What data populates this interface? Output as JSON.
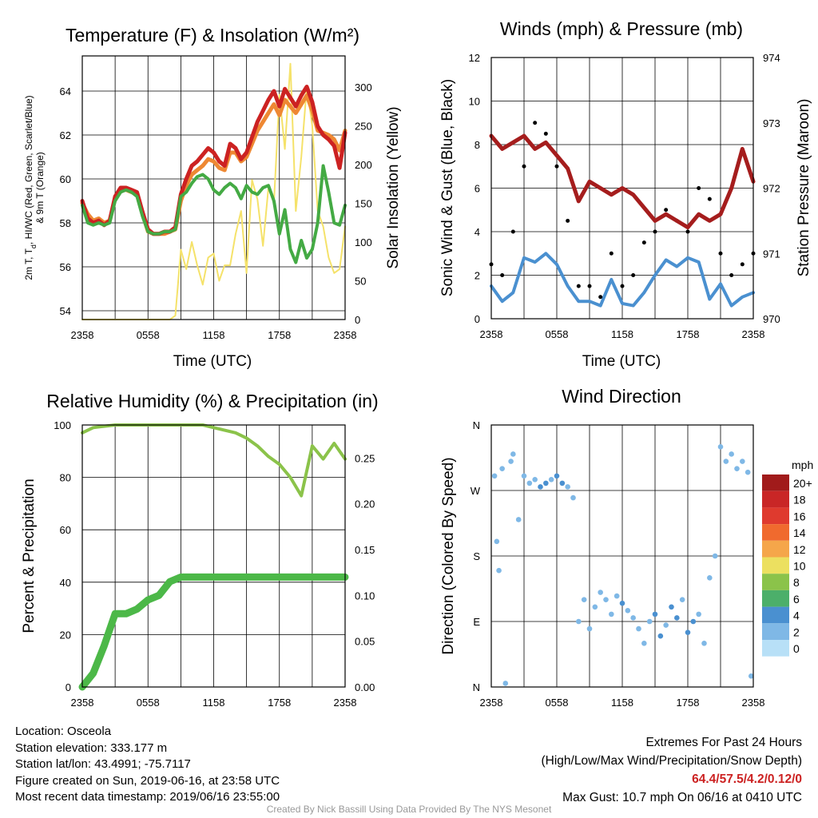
{
  "colors": {
    "red": "#cc2222",
    "orange": "#ee8833",
    "green": "#44aa44",
    "yellow": "#f5e26a",
    "lightgreen": "#8bc34a",
    "blue": "#4a90d0",
    "maroon": "#a51d1d",
    "black": "#000000",
    "precip": "#4cb848",
    "credit": "#999999"
  },
  "x_ticks": [
    "2358",
    "0558",
    "1158",
    "1758",
    "2358"
  ],
  "info": {
    "location": "Location: Osceola",
    "elevation": "Station elevation: 333.177 m",
    "latlon": "Station lat/lon: 43.4991; -75.7117",
    "created": "Figure created on Sun, 2019-06-16, at 23:58 UTC",
    "recent": "Most recent data timestamp: 2019/06/16 23:55:00"
  },
  "extremes": {
    "title": "Extremes For Past 24 Hours",
    "subtitle": "(High/Low/Max Wind/Precipitation/Snow Depth)",
    "values": "64.4/57.5/4.2/0.12/0",
    "max_gust": "Max Gust: 10.7 mph On 06/16 at 0410 UTC"
  },
  "credit": "Created By Nick Bassill Using Data Provided By The NYS Mesonet",
  "chart_data": [
    {
      "type": "line",
      "title": "Temperature (F) & Insolation (W/m²)",
      "xlabel": "Time (UTC)",
      "ylabel": "2m T, Td, HI/WC (Red, Green, Scarlet/Blue) & 9m T (Orange)",
      "ylabel_lines": [
        "2m T, T",
        "d",
        ", HI/WC (Red, Green, Scarlet/Blue)",
        "& 9m T (Orange)"
      ],
      "ylabel_right": "Solar Insolation (Yellow)",
      "ylim": [
        53.6,
        65.6
      ],
      "y_ticks": [
        54,
        56,
        58,
        60,
        62,
        64
      ],
      "ylim_right": [
        0,
        340
      ],
      "y_ticks_right": [
        0,
        50,
        100,
        150,
        200,
        250,
        300
      ],
      "x_hours": [
        0,
        0.5,
        1,
        1.5,
        2,
        2.5,
        3,
        3.5,
        4,
        4.5,
        5,
        5.5,
        6,
        6.5,
        7,
        7.5,
        8,
        8.5,
        9,
        9.5,
        10,
        10.5,
        11,
        11.5,
        12,
        12.5,
        13,
        13.5,
        14,
        14.5,
        15,
        15.5,
        16,
        16.5,
        17,
        17.5,
        18,
        18.5,
        19,
        19.5,
        20,
        20.5,
        21,
        21.5,
        22,
        22.5,
        23,
        23.5,
        24
      ],
      "series": [
        {
          "name": "2m T",
          "color": "red",
          "values": [
            59.0,
            58.2,
            58.0,
            58.1,
            57.9,
            58.1,
            59.2,
            59.6,
            59.6,
            59.5,
            59.4,
            58.5,
            57.7,
            57.5,
            57.5,
            57.6,
            57.6,
            57.8,
            59.3,
            60.0,
            60.6,
            60.8,
            61.1,
            61.4,
            61.2,
            60.8,
            60.6,
            61.6,
            61.4,
            60.9,
            61.2,
            61.9,
            62.6,
            63.1,
            63.6,
            64.0,
            63.3,
            64.1,
            63.7,
            63.3,
            63.8,
            64.2,
            63.5,
            62.4,
            62.0,
            61.8,
            61.5,
            60.5,
            62.1
          ]
        },
        {
          "name": "9m T",
          "color": "orange",
          "values": [
            58.9,
            58.4,
            58.1,
            58.2,
            58.0,
            58.1,
            59.1,
            59.5,
            59.5,
            59.4,
            59.3,
            58.4,
            57.6,
            57.5,
            57.5,
            57.5,
            57.6,
            57.7,
            59.0,
            59.7,
            60.2,
            60.4,
            60.6,
            60.9,
            60.8,
            60.5,
            60.4,
            61.2,
            61.2,
            60.8,
            61.0,
            61.6,
            62.2,
            62.6,
            63.0,
            63.4,
            62.9,
            63.6,
            63.3,
            63.0,
            63.4,
            63.8,
            63.1,
            62.2,
            62.1,
            62.0,
            61.8,
            61.3,
            62.2
          ]
        },
        {
          "name": "Td",
          "color": "green",
          "values": [
            58.8,
            58.0,
            57.9,
            58.0,
            57.9,
            58.0,
            59.0,
            59.4,
            59.5,
            59.4,
            59.2,
            58.3,
            57.6,
            57.5,
            57.5,
            57.6,
            57.6,
            57.7,
            59.2,
            59.4,
            59.8,
            60.1,
            60.2,
            60.0,
            59.5,
            59.3,
            59.6,
            59.8,
            59.6,
            59.1,
            59.7,
            59.4,
            59.3,
            59.6,
            59.7,
            59.0,
            57.5,
            58.6,
            56.8,
            56.2,
            57.2,
            56.4,
            56.8,
            58.0,
            60.6,
            59.4,
            58.0,
            57.9,
            58.8
          ]
        },
        {
          "name": "Solar Insolation",
          "color": "yellow",
          "axis": "right",
          "values": [
            0,
            0,
            0,
            0,
            0,
            0,
            0,
            0,
            0,
            0,
            0,
            0,
            0,
            0,
            0,
            0,
            0,
            5,
            90,
            65,
            100,
            70,
            45,
            80,
            85,
            50,
            70,
            70,
            110,
            140,
            60,
            180,
            155,
            95,
            170,
            150,
            290,
            220,
            330,
            140,
            210,
            300,
            250,
            140,
            120,
            80,
            60,
            65,
            120
          ]
        }
      ]
    },
    {
      "type": "line",
      "title": "Winds (mph) & Pressure (mb)",
      "xlabel": "Time (UTC)",
      "ylabel": "Sonic Wind & Gust (Blue, Black)",
      "ylabel_right": "Station Pressure (Maroon)",
      "ylim": [
        0,
        12
      ],
      "y_ticks": [
        0,
        2,
        4,
        6,
        8,
        10,
        12
      ],
      "ylim_right": [
        970,
        974
      ],
      "y_ticks_right": [
        970,
        971,
        972,
        973,
        974
      ],
      "x_hours": [
        0,
        1,
        2,
        3,
        4,
        5,
        6,
        7,
        8,
        9,
        10,
        11,
        12,
        13,
        14,
        15,
        16,
        17,
        18,
        19,
        20,
        21,
        22,
        23,
        24
      ],
      "series": [
        {
          "name": "Station Pressure",
          "color": "maroon",
          "axis": "right",
          "values": [
            972.8,
            972.6,
            972.7,
            972.8,
            972.6,
            972.7,
            972.5,
            972.3,
            971.8,
            972.1,
            972.0,
            971.9,
            972.0,
            971.9,
            971.7,
            971.5,
            971.6,
            971.5,
            971.4,
            971.6,
            971.5,
            971.6,
            972.0,
            972.6,
            972.1
          ]
        },
        {
          "name": "Sonic Wind",
          "color": "blue",
          "values": [
            1.5,
            0.8,
            1.2,
            2.8,
            2.6,
            3.0,
            2.5,
            1.5,
            0.8,
            0.8,
            0.6,
            1.8,
            0.7,
            0.6,
            1.2,
            2.0,
            2.7,
            2.4,
            2.8,
            2.6,
            0.9,
            1.6,
            0.6,
            1.0,
            1.2
          ]
        },
        {
          "name": "Gust",
          "color": "black",
          "values": [
            2.5,
            2.0,
            4.0,
            7.0,
            9.0,
            8.5,
            7.0,
            4.5,
            1.5,
            1.5,
            1.0,
            3.0,
            1.5,
            2.0,
            3.5,
            4.0,
            5.0,
            4.5,
            4.0,
            6.0,
            5.5,
            3.0,
            2.0,
            2.5,
            3.0
          ]
        }
      ]
    },
    {
      "type": "line",
      "title": "Relative Humidity (%) & Precipitation (in)",
      "ylabel": "Percent & Precipitation",
      "ylim": [
        0,
        100
      ],
      "y_ticks": [
        0,
        20,
        40,
        60,
        80,
        100
      ],
      "ylim_right": [
        0,
        0.286
      ],
      "y_ticks_right": [
        "0.00",
        "0.05",
        "0.10",
        "0.15",
        "0.20",
        "0.25"
      ],
      "x_hours": [
        0,
        1,
        2,
        3,
        4,
        5,
        6,
        7,
        8,
        9,
        10,
        11,
        12,
        13,
        14,
        15,
        16,
        17,
        18,
        19,
        20,
        21,
        22,
        23,
        24
      ],
      "series": [
        {
          "name": "Relative Humidity",
          "color": "lightgreen",
          "values": [
            97,
            99,
            99.5,
            100,
            100,
            100,
            100,
            100,
            100,
            100,
            100,
            100,
            99,
            98,
            97,
            95,
            92,
            88,
            85,
            80,
            73,
            92,
            87,
            93,
            87
          ]
        },
        {
          "name": "Precipitation",
          "color": "precip",
          "axis": "right",
          "values": [
            0.0,
            0.015,
            0.045,
            0.08,
            0.08,
            0.085,
            0.095,
            0.1,
            0.115,
            0.12,
            0.12,
            0.12,
            0.12,
            0.12,
            0.12,
            0.12,
            0.12,
            0.12,
            0.12,
            0.12,
            0.12,
            0.12,
            0.12,
            0.12,
            0.12
          ]
        }
      ]
    },
    {
      "type": "scatter",
      "title": "Wind Direction",
      "ylabel": "Direction (Colored By Speed)",
      "y_ticks": [
        "N",
        "E",
        "S",
        "W",
        "N"
      ],
      "ylim": [
        0,
        360
      ],
      "legend": {
        "title": "mph",
        "position": "right",
        "labels": [
          "20+",
          "18",
          "16",
          "14",
          "12",
          "10",
          "8",
          "6",
          "4",
          "2",
          "0"
        ],
        "colors": [
          "#a11b1b",
          "#c92626",
          "#df3a2e",
          "#f06a2e",
          "#f5a64a",
          "#ece060",
          "#8bc34a",
          "#4caf6a",
          "#4a90d0",
          "#7fb8e6",
          "#b8e0f7"
        ]
      },
      "points": [
        {
          "h": 0.3,
          "dir": 290,
          "spd": 1
        },
        {
          "h": 0.5,
          "dir": 200,
          "spd": 1
        },
        {
          "h": 0.7,
          "dir": 160,
          "spd": 1
        },
        {
          "h": 1.0,
          "dir": 300,
          "spd": 1
        },
        {
          "h": 1.3,
          "dir": 5,
          "spd": 1
        },
        {
          "h": 1.8,
          "dir": 310,
          "spd": 1
        },
        {
          "h": 2.0,
          "dir": 320,
          "spd": 1
        },
        {
          "h": 2.5,
          "dir": 230,
          "spd": 1
        },
        {
          "h": 3.0,
          "dir": 290,
          "spd": 2
        },
        {
          "h": 3.5,
          "dir": 280,
          "spd": 2
        },
        {
          "h": 4.0,
          "dir": 285,
          "spd": 2
        },
        {
          "h": 4.5,
          "dir": 275,
          "spd": 3
        },
        {
          "h": 5.0,
          "dir": 280,
          "spd": 3
        },
        {
          "h": 5.5,
          "dir": 285,
          "spd": 2
        },
        {
          "h": 6.0,
          "dir": 290,
          "spd": 4
        },
        {
          "h": 6.5,
          "dir": 280,
          "spd": 3
        },
        {
          "h": 7.0,
          "dir": 275,
          "spd": 2
        },
        {
          "h": 7.5,
          "dir": 260,
          "spd": 1
        },
        {
          "h": 8.0,
          "dir": 90,
          "spd": 1
        },
        {
          "h": 8.5,
          "dir": 120,
          "spd": 1
        },
        {
          "h": 9.0,
          "dir": 80,
          "spd": 1
        },
        {
          "h": 9.5,
          "dir": 110,
          "spd": 1
        },
        {
          "h": 10.0,
          "dir": 130,
          "spd": 2
        },
        {
          "h": 10.5,
          "dir": 120,
          "spd": 2
        },
        {
          "h": 11.0,
          "dir": 100,
          "spd": 1
        },
        {
          "h": 11.5,
          "dir": 125,
          "spd": 2
        },
        {
          "h": 12.0,
          "dir": 115,
          "spd": 3
        },
        {
          "h": 12.5,
          "dir": 105,
          "spd": 2
        },
        {
          "h": 13.0,
          "dir": 95,
          "spd": 2
        },
        {
          "h": 13.5,
          "dir": 80,
          "spd": 1
        },
        {
          "h": 14.0,
          "dir": 60,
          "spd": 1
        },
        {
          "h": 14.5,
          "dir": 90,
          "spd": 2
        },
        {
          "h": 15.0,
          "dir": 100,
          "spd": 3
        },
        {
          "h": 15.5,
          "dir": 70,
          "spd": 3
        },
        {
          "h": 16.0,
          "dir": 85,
          "spd": 2
        },
        {
          "h": 16.5,
          "dir": 110,
          "spd": 3
        },
        {
          "h": 17.0,
          "dir": 95,
          "spd": 3
        },
        {
          "h": 17.5,
          "dir": 120,
          "spd": 2
        },
        {
          "h": 18.0,
          "dir": 75,
          "spd": 3
        },
        {
          "h": 18.5,
          "dir": 90,
          "spd": 4
        },
        {
          "h": 19.0,
          "dir": 100,
          "spd": 2
        },
        {
          "h": 19.5,
          "dir": 60,
          "spd": 1
        },
        {
          "h": 20.0,
          "dir": 150,
          "spd": 1
        },
        {
          "h": 20.5,
          "dir": 180,
          "spd": 1
        },
        {
          "h": 21.0,
          "dir": 330,
          "spd": 1
        },
        {
          "h": 21.5,
          "dir": 310,
          "spd": 1
        },
        {
          "h": 22.0,
          "dir": 320,
          "spd": 1
        },
        {
          "h": 22.5,
          "dir": 300,
          "spd": 1
        },
        {
          "h": 23.0,
          "dir": 310,
          "spd": 1
        },
        {
          "h": 23.5,
          "dir": 295,
          "spd": 1
        },
        {
          "h": 23.8,
          "dir": 15,
          "spd": 1
        }
      ]
    }
  ]
}
